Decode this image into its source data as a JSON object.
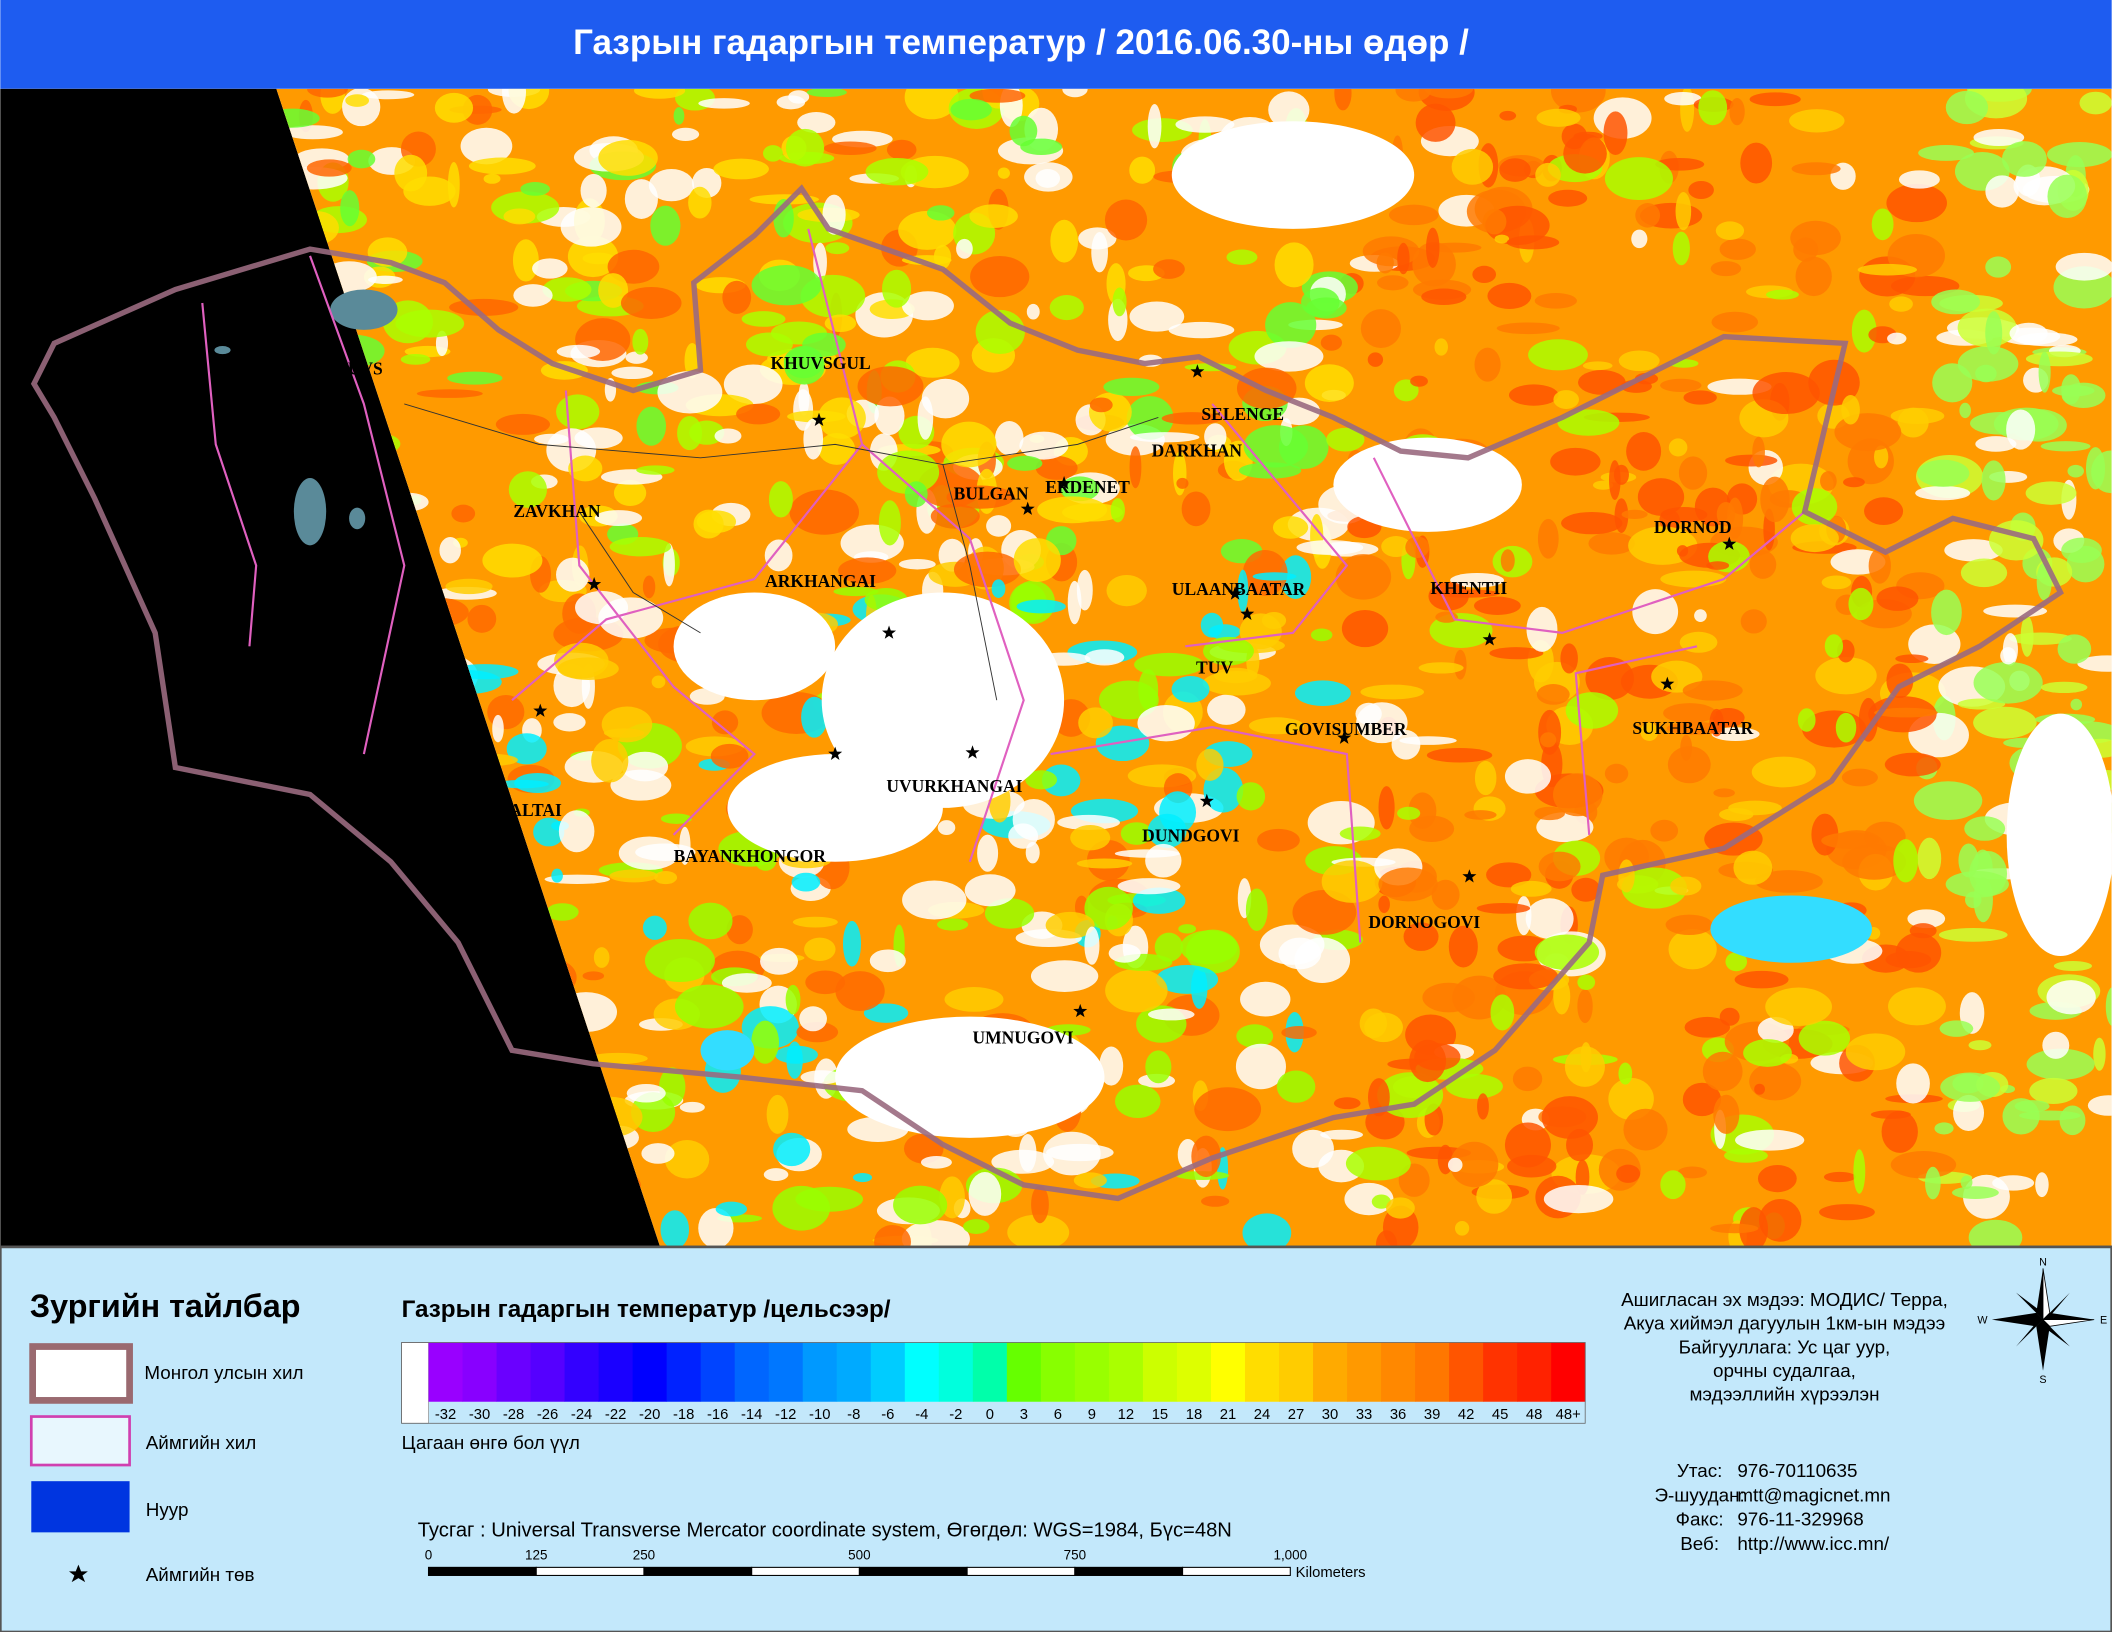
{
  "header": {
    "title": "Газрын гадаргын температур / 2016.06.30-ны өдөр /"
  },
  "map": {
    "labels": [
      "UVS",
      "KHUVSGUL",
      "SELENGE",
      "DARKHAN",
      "ZAVKHAN",
      "BULGAN",
      "ERDENET",
      "ARKHANGAI",
      "ULAANBAATAR",
      "KHENTII",
      "DORNOD",
      "TUV",
      "GOVISUMBER",
      "SUKHBAATAR",
      "ALTAI",
      "UVURKHANGAI",
      "BAYANKHONGOR",
      "DUNDGOVI",
      "DORNOGOVI",
      "UMNUGOVI"
    ]
  },
  "legend": {
    "title": "Зургийн тайлбар",
    "items": [
      "Монгол улсын хил",
      "Аймгийн хил",
      "Нуур",
      "Аймгийн төв"
    ]
  },
  "color_scale": {
    "title": "Газрын гадаргын температур /цельсээр/",
    "labels": [
      -32,
      -30,
      -28,
      -26,
      -24,
      -22,
      -20,
      -18,
      -16,
      -14,
      -12,
      -10,
      -8,
      -6,
      -4,
      -2,
      0,
      3,
      6,
      9,
      12,
      15,
      18,
      21,
      24,
      27,
      30,
      33,
      36,
      39,
      42,
      45,
      48,
      "48+"
    ],
    "colors": [
      "#9900ff",
      "#8800ff",
      "#6a00ff",
      "#5500ff",
      "#3300ff",
      "#1a00ff",
      "#0000ff",
      "#0022ff",
      "#0044ff",
      "#0066ff",
      "#0077ff",
      "#0099ff",
      "#00aaff",
      "#00ccff",
      "#00ffff",
      "#00ffdd",
      "#00ffaa",
      "#66ff00",
      "#88ff00",
      "#99ff00",
      "#aaff00",
      "#ccff00",
      "#ddff00",
      "#ffff00",
      "#ffdd00",
      "#ffcc00",
      "#ffaa00",
      "#ff9900",
      "#ff8800",
      "#ff7700",
      "#ff5500",
      "#ff3300",
      "#ff2200",
      "#ff0000"
    ],
    "note": "Цагаан өнгө бол үүл"
  },
  "projection": "Тусгаг : Universal Transverse Mercator coordinate system, Өгөгдөл: WGS=1984, Бүс=48N",
  "scale_bar": {
    "ticks": [
      0,
      125,
      250,
      500,
      750,
      {
        "value": 1000,
        "label": "1,000"
      }
    ],
    "unit": "Kilometers"
  },
  "source": {
    "lines": [
      "Ашигласан эх мэдээ: МОДИС/ Терра,",
      "Акуа хиймэл дагуулын 1км-ын мэдээ",
      "Байгууллага: Ус цаг уур,",
      "орчны судалгаа,",
      "мэдээллийн хүрээлэн"
    ]
  },
  "contact": {
    "rows": [
      [
        "Утас:",
        "976-70110635"
      ],
      [
        "Э-шуудан:",
        "mtt@magicnet.mn"
      ],
      [
        "Факс:",
        "976-11-329968"
      ],
      [
        "Веб:",
        "http://www.icc.mn/"
      ]
    ]
  },
  "compass": {
    "n": "N",
    "e": "E",
    "s": "S",
    "w": "W"
  }
}
